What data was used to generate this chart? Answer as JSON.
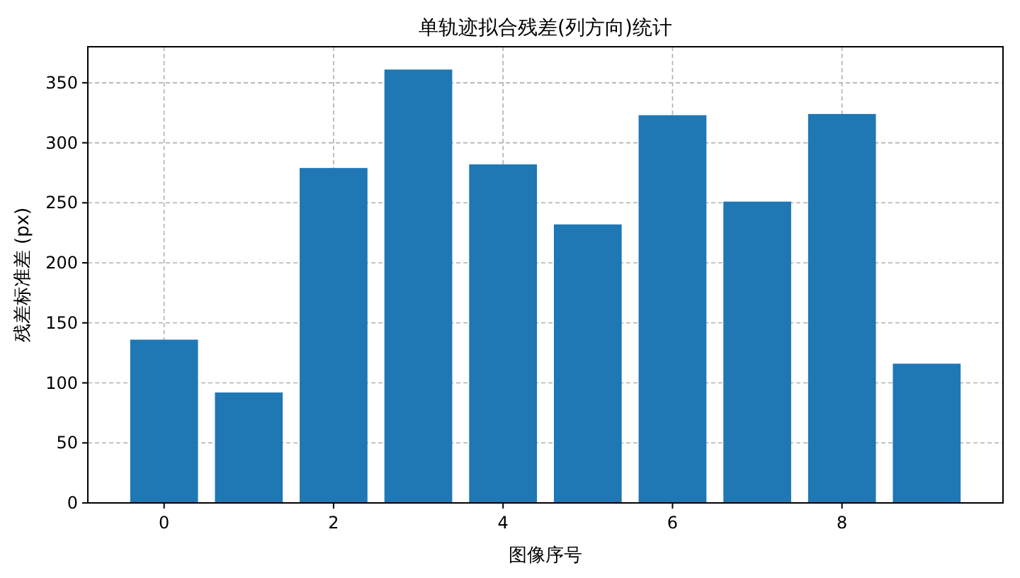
{
  "chart_data": {
    "type": "bar",
    "title": "单轨迹拟合残差(列方向)统计",
    "xlabel": "图像序号",
    "ylabel": "残差标准差 (px)",
    "x": [
      0,
      1,
      2,
      3,
      4,
      5,
      6,
      7,
      8,
      9
    ],
    "values": [
      136,
      92,
      279,
      361,
      282,
      232,
      323,
      251,
      324,
      116
    ],
    "color": "#1f77b4",
    "xlim": [
      -0.9,
      9.9
    ],
    "xticks": [
      0,
      2,
      4,
      6,
      8
    ],
    "ylim": [
      0,
      380
    ],
    "yticks": [
      0,
      50,
      100,
      150,
      200,
      250,
      300,
      350
    ],
    "grid": true
  }
}
